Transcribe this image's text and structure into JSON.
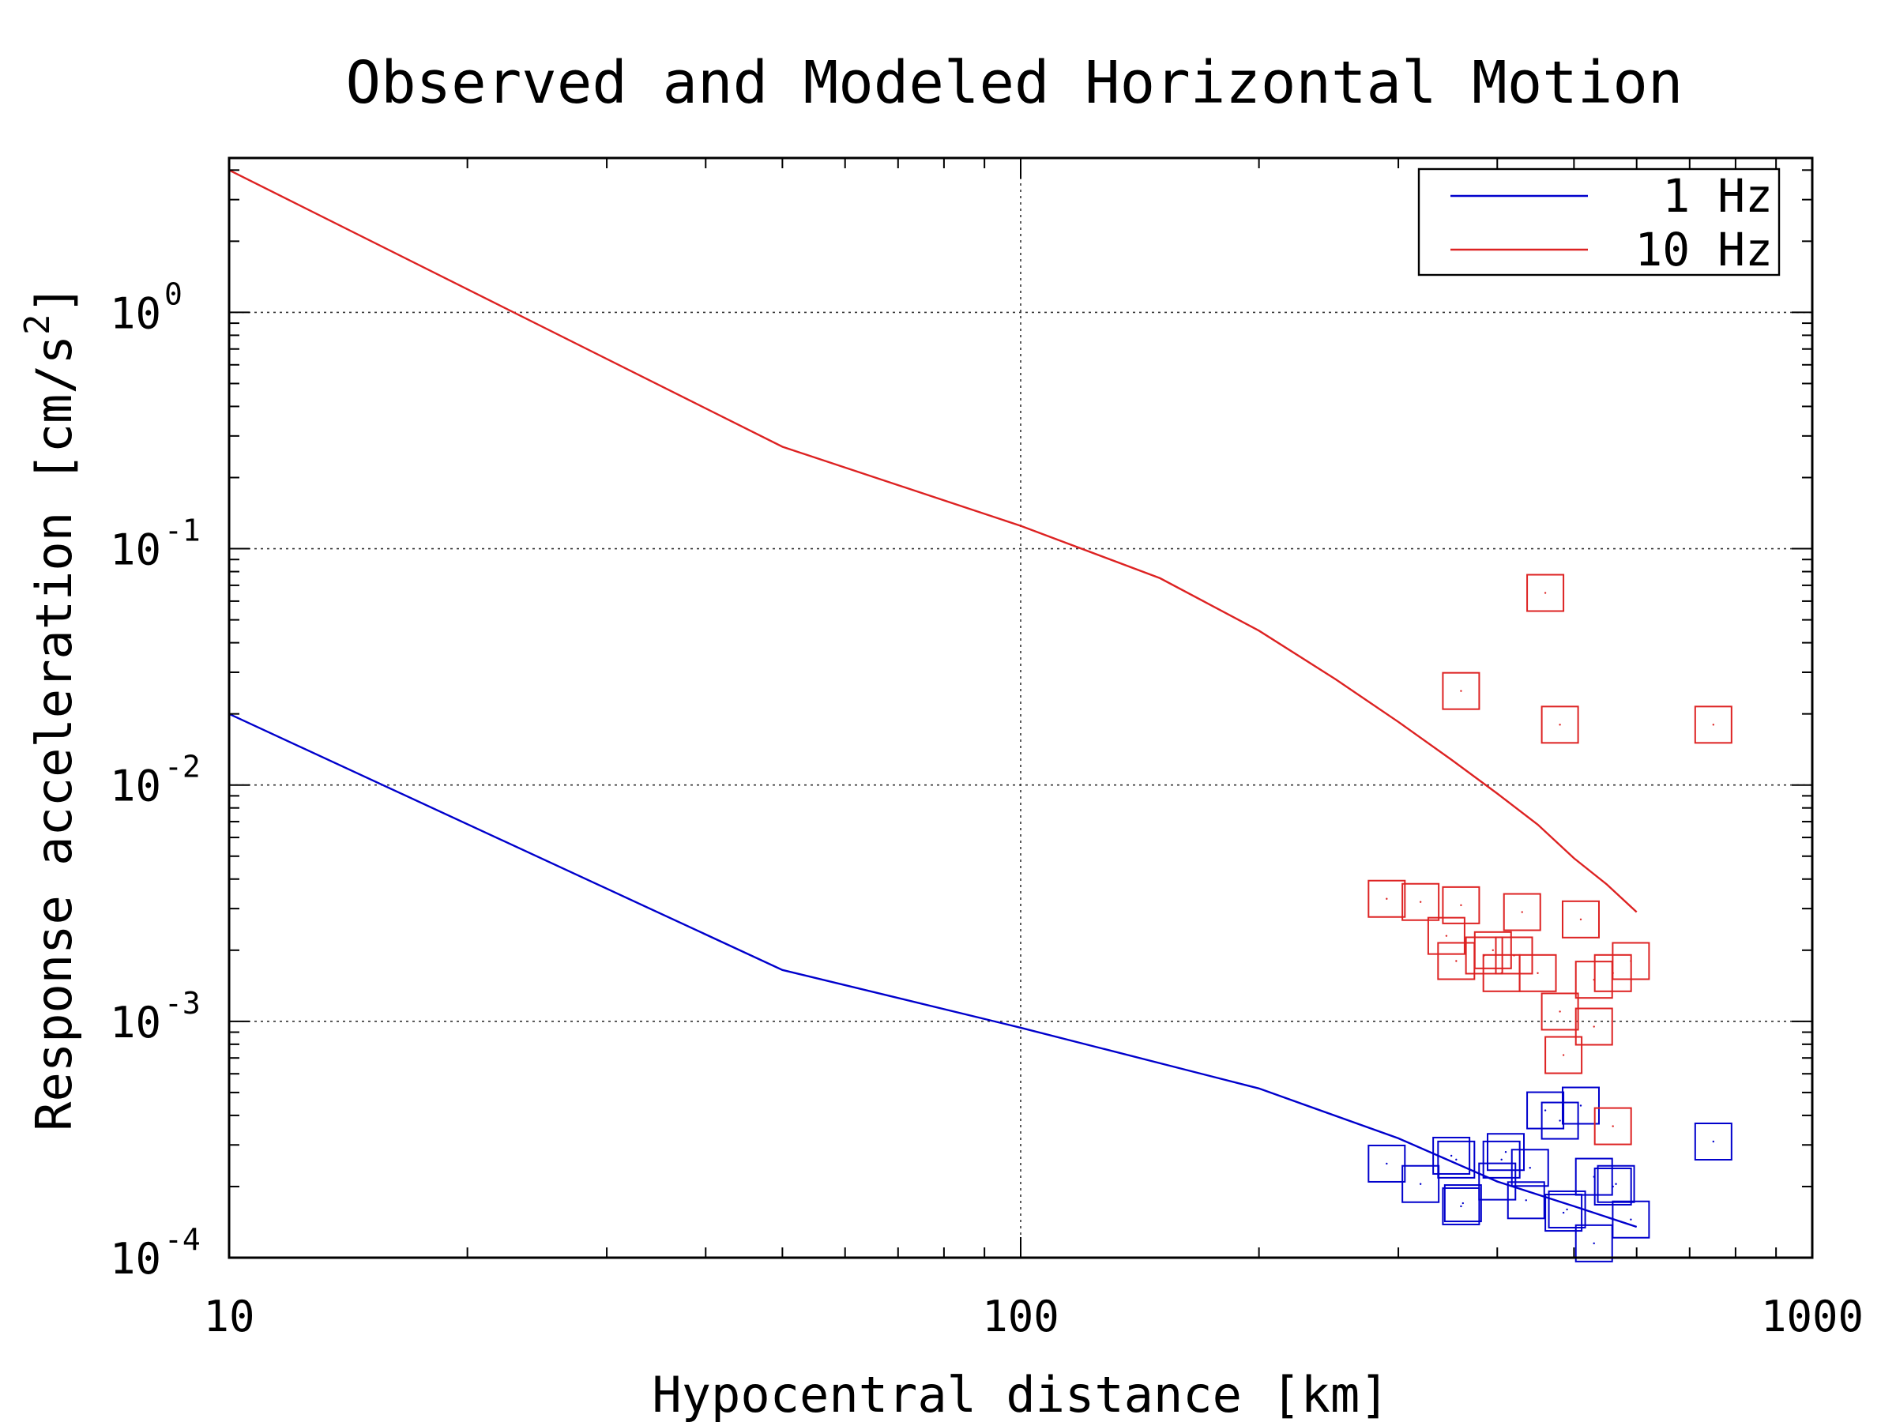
{
  "chart_data": {
    "type": "scatter",
    "title": "Observed and Modeled Horizontal Motion",
    "xlabel": "Hypocentral distance [km]",
    "ylabel_text": "Response acceleration [cm/s",
    "ylabel_sup": "2",
    "ylabel_end": "]",
    "x_scale": "log",
    "y_scale": "log",
    "xlim": [
      10,
      1000
    ],
    "ylim": [
      0.0001,
      4.5
    ],
    "x_ticks": [
      {
        "value": 10,
        "label": "10"
      },
      {
        "value": 100,
        "label": "100"
      },
      {
        "value": 1000,
        "label": "1000"
      }
    ],
    "y_ticks": [
      {
        "value": 1,
        "base": "10",
        "exp": "0"
      },
      {
        "value": 0.1,
        "base": "10",
        "exp": "-1"
      },
      {
        "value": 0.01,
        "base": "10",
        "exp": "-2"
      },
      {
        "value": 0.001,
        "base": "10",
        "exp": "-3"
      },
      {
        "value": 0.0001,
        "base": "10",
        "exp": "-4"
      }
    ],
    "grid": true,
    "legend_position": "top-right",
    "series": [
      {
        "name": "1 Hz",
        "color": "#0000cc",
        "model_line": [
          [
            10,
            0.02
          ],
          [
            50,
            0.00165
          ],
          [
            100,
            0.00094
          ],
          [
            200,
            0.00052
          ],
          [
            300,
            0.00032
          ],
          [
            400,
            0.00021
          ],
          [
            500,
            0.000165
          ],
          [
            600,
            0.000135
          ]
        ],
        "observed": [
          [
            290,
            0.00025
          ],
          [
            320,
            0.000205
          ],
          [
            350,
            0.00027
          ],
          [
            355,
            0.00026
          ],
          [
            360,
            0.000165
          ],
          [
            362,
            0.00017
          ],
          [
            400,
            0.00021
          ],
          [
            405,
            0.00026
          ],
          [
            410,
            0.00028
          ],
          [
            440,
            0.00024
          ],
          [
            435,
            0.000175
          ],
          [
            460,
            0.00042
          ],
          [
            480,
            0.00038
          ],
          [
            485,
            0.000155
          ],
          [
            490,
            0.00016
          ],
          [
            510,
            0.00044
          ],
          [
            530,
            0.000115
          ],
          [
            530,
            0.00022
          ],
          [
            560,
            0.0002
          ],
          [
            565,
            0.000205
          ],
          [
            590,
            0.000145
          ],
          [
            750,
            0.00031
          ]
        ]
      },
      {
        "name": "10 Hz",
        "color": "#dd2222",
        "model_line": [
          [
            10,
            4.0
          ],
          [
            50,
            0.27
          ],
          [
            100,
            0.125
          ],
          [
            150,
            0.075
          ],
          [
            200,
            0.045
          ],
          [
            250,
            0.028
          ],
          [
            300,
            0.0185
          ],
          [
            350,
            0.0128
          ],
          [
            400,
            0.0092
          ],
          [
            450,
            0.0068
          ],
          [
            500,
            0.0049
          ],
          [
            550,
            0.0038
          ],
          [
            600,
            0.0029
          ]
        ],
        "observed": [
          [
            460,
            0.065
          ],
          [
            360,
            0.025
          ],
          [
            480,
            0.018
          ],
          [
            750,
            0.018
          ],
          [
            290,
            0.0033
          ],
          [
            320,
            0.0032
          ],
          [
            360,
            0.0031
          ],
          [
            430,
            0.0029
          ],
          [
            510,
            0.0027
          ],
          [
            345,
            0.0023
          ],
          [
            355,
            0.0018
          ],
          [
            385,
            0.0019
          ],
          [
            395,
            0.002
          ],
          [
            405,
            0.0016
          ],
          [
            420,
            0.0019
          ],
          [
            450,
            0.0016
          ],
          [
            530,
            0.0015
          ],
          [
            560,
            0.0016
          ],
          [
            590,
            0.0018
          ],
          [
            480,
            0.0011
          ],
          [
            530,
            0.00095
          ],
          [
            485,
            0.00072
          ],
          [
            560,
            0.00036
          ]
        ]
      }
    ]
  }
}
